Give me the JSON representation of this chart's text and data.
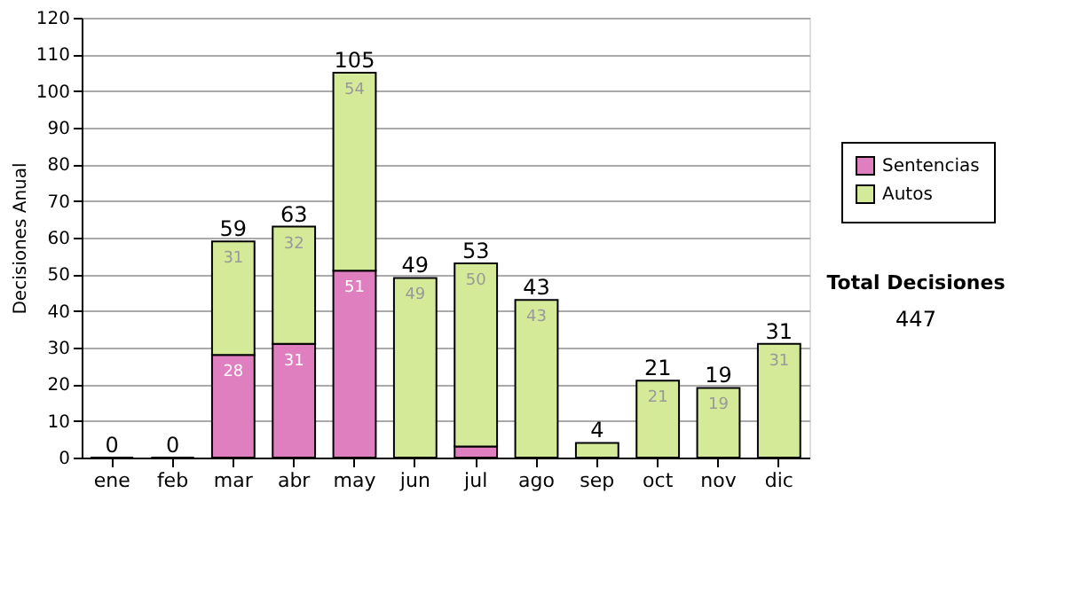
{
  "chart_data": {
    "type": "bar",
    "stacked": true,
    "ylabel": "Decisiones Anual",
    "categories": [
      "ene",
      "feb",
      "mar",
      "abr",
      "may",
      "jun",
      "jul",
      "ago",
      "sep",
      "oct",
      "nov",
      "dic"
    ],
    "series": [
      {
        "name": "Sentencias",
        "color": "#e07fc0",
        "values": [
          0,
          0,
          28,
          31,
          51,
          0,
          3,
          0,
          0,
          0,
          0,
          0
        ],
        "value_labels": [
          null,
          null,
          "28",
          "31",
          "51",
          null,
          null,
          null,
          null,
          null,
          null,
          null
        ]
      },
      {
        "name": "Autos",
        "color": "#d4ea98",
        "values": [
          0,
          0,
          31,
          32,
          54,
          49,
          50,
          43,
          4,
          21,
          19,
          31
        ],
        "value_labels": [
          null,
          null,
          "31",
          "32",
          "54",
          "49",
          "50",
          "43",
          null,
          "21",
          "19",
          "31"
        ]
      }
    ],
    "totals": [
      "0",
      "0",
      "59",
      "63",
      "105",
      "49",
      "53",
      "43",
      "4",
      "21",
      "19",
      "31"
    ],
    "ylim": [
      0,
      120
    ],
    "yticks": [
      0,
      10,
      20,
      30,
      40,
      50,
      60,
      70,
      80,
      90,
      100,
      110,
      120
    ],
    "grid": "y",
    "legend": "right",
    "annotations": [
      "Total Decisiones",
      "447"
    ]
  }
}
